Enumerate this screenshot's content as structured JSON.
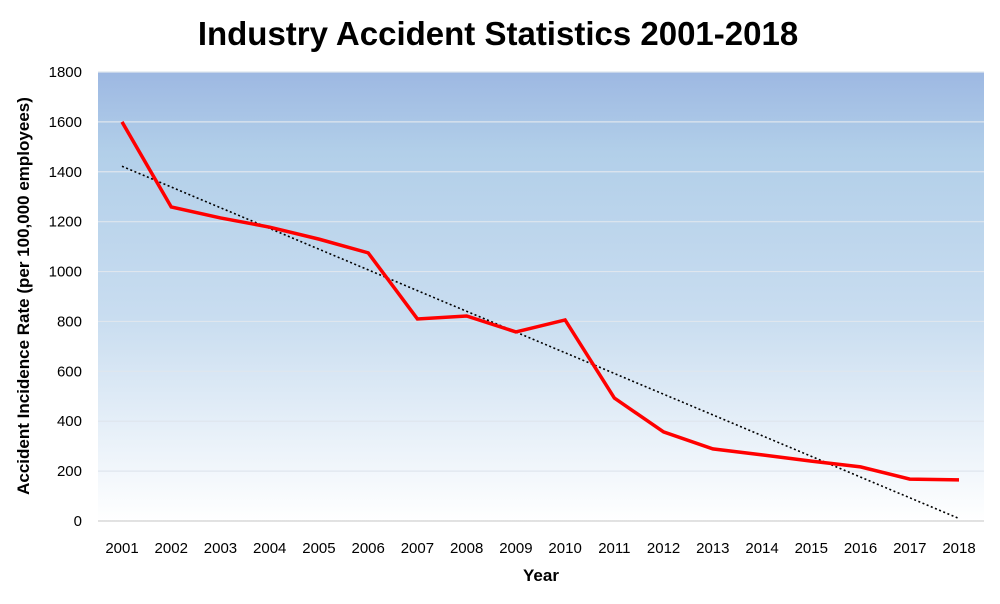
{
  "chart_data": {
    "type": "line",
    "title": "Industry Accident Statistics 2001-2018",
    "xlabel": "Year",
    "ylabel": "Accident Incidence Rate (per 100,000 employees)",
    "categories": [
      "2001",
      "2002",
      "2003",
      "2004",
      "2005",
      "2006",
      "2007",
      "2008",
      "2009",
      "2010",
      "2011",
      "2012",
      "2013",
      "2014",
      "2015",
      "2016",
      "2017",
      "2018"
    ],
    "series": [
      {
        "values": [
          1600,
          1259,
          1215,
          1178,
          1130,
          1075,
          810,
          822,
          758,
          806,
          493,
          357,
          289,
          265,
          240,
          217,
          168,
          165
        ],
        "color": "#ff0000",
        "style": "solid"
      }
    ],
    "trendline": {
      "type": "linear",
      "start": 1422,
      "end": 10,
      "color": "#000000",
      "style": "dotted"
    },
    "ylim": [
      0,
      1800
    ],
    "yticks": [
      0,
      200,
      400,
      600,
      800,
      1000,
      1200,
      1400,
      1600,
      1800
    ],
    "grid": true,
    "legend": "none",
    "background_gradient": [
      "#9db8e2",
      "#ffffff"
    ]
  }
}
